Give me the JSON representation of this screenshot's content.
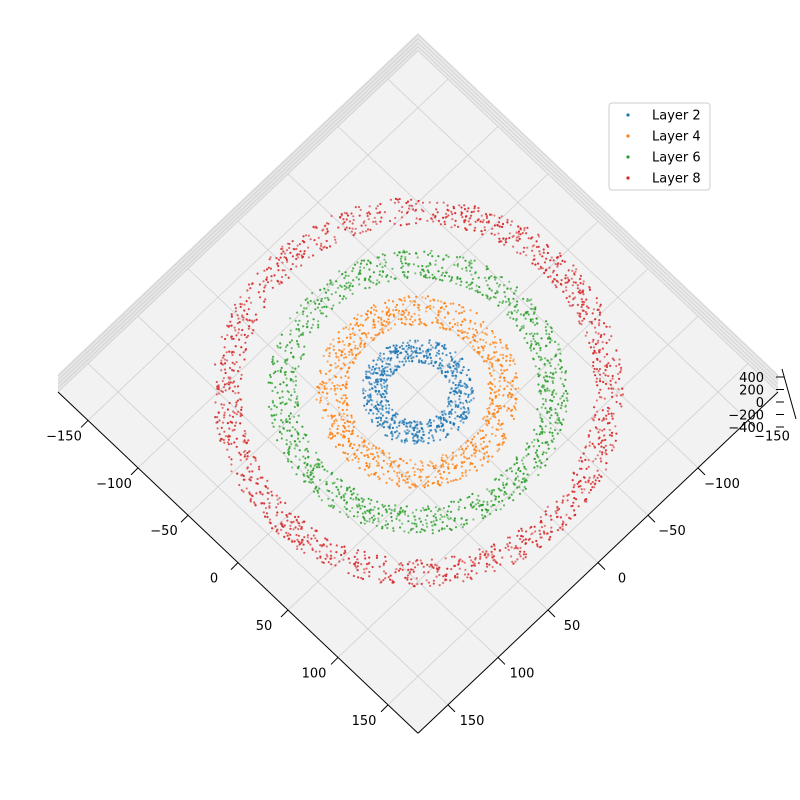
{
  "chart_data": {
    "type": "scatter",
    "projection": "3d-top-down",
    "title": "",
    "xlabel": "",
    "ylabel": "",
    "zlabel": "",
    "xlim": [
      -180,
      180
    ],
    "ylim": [
      -180,
      180
    ],
    "zlim": [
      -450,
      450
    ],
    "x_ticks": [
      "−150",
      "−100",
      "−50",
      "0",
      "50",
      "100",
      "150"
    ],
    "y_ticks": [
      "−150",
      "−100",
      "−50",
      "0",
      "50",
      "100",
      "150"
    ],
    "z_ticks": [
      "400",
      "200",
      "0",
      "−200",
      "−400"
    ],
    "grid": true,
    "legend_position": "top-right",
    "series": [
      {
        "name": "Layer 2",
        "color": "#1f77b4",
        "inner_radius": 22,
        "outer_radius": 40,
        "z_range": [
          -400,
          400
        ]
      },
      {
        "name": "Layer 4",
        "color": "#ff7f0e",
        "inner_radius": 50,
        "outer_radius": 72,
        "z_range": [
          -400,
          400
        ]
      },
      {
        "name": "Layer 6",
        "color": "#2ca02c",
        "inner_radius": 85,
        "outer_radius": 106,
        "z_range": [
          -400,
          400
        ]
      },
      {
        "name": "Layer 8",
        "color": "#d62728",
        "inner_radius": 125,
        "outer_radius": 145,
        "z_range": [
          -400,
          400
        ]
      }
    ]
  }
}
